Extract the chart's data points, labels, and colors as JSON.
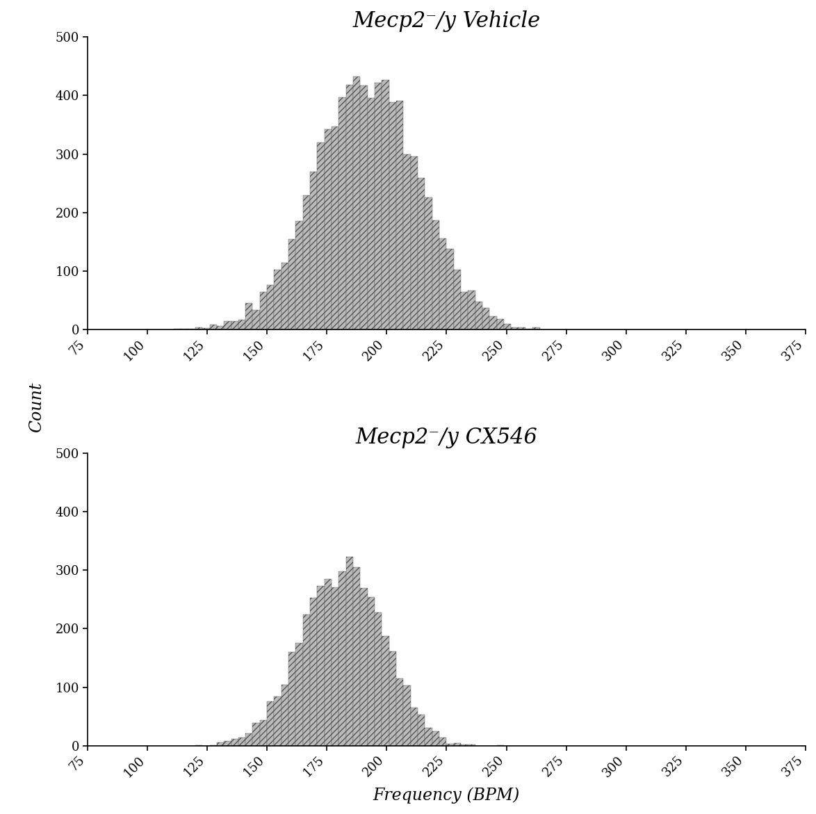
{
  "title1": "Mecp2⁻/y Vehicle",
  "title2": "Mecp2⁻/y CX546",
  "xlabel": "Frequency (BPM)",
  "ylabel": "Count",
  "xlim": [
    75,
    375
  ],
  "ylim": [
    0,
    500
  ],
  "xticks": [
    75,
    100,
    125,
    150,
    175,
    200,
    225,
    250,
    275,
    300,
    325,
    350,
    375
  ],
  "yticks": [
    0,
    100,
    200,
    300,
    400,
    500
  ],
  "bar_color": "#bbbbbb",
  "bar_edgecolor": "#555555",
  "background_color": "#ffffff",
  "hist1_mean": 192,
  "hist1_std": 22,
  "hist1_n": 8000,
  "hist2_mean": 182,
  "hist2_std": 17,
  "hist2_n": 4500,
  "bin_width": 3,
  "bins_start": 75,
  "bins_end": 375,
  "title_fontsize": 22,
  "axis_label_fontsize": 17,
  "tick_fontsize": 13,
  "hatch": "////"
}
